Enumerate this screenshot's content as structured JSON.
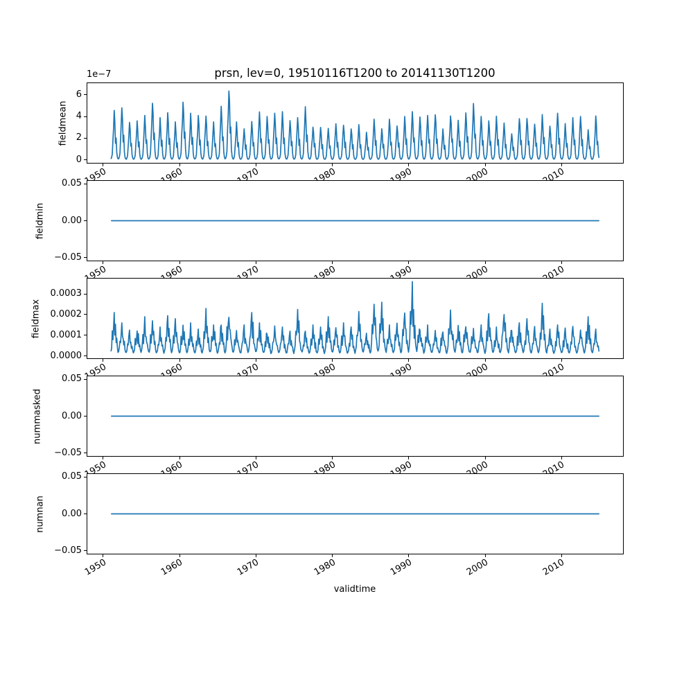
{
  "figure": {
    "title": "prsn, lev=0, 19510116T1200 to 20141130T1200",
    "xlabel": "validtime",
    "background": "#ffffff",
    "line_color": "#1f77b4",
    "frame_color": "#000000",
    "xlim": [
      1947.85,
      2018.11
    ],
    "xticks": [
      {
        "label": "1950",
        "value": 1950
      },
      {
        "label": "1960",
        "value": 1960
      },
      {
        "label": "1970",
        "value": 1970
      },
      {
        "label": "1980",
        "value": 1980
      },
      {
        "label": "1990",
        "value": 1990
      },
      {
        "label": "2000",
        "value": 2000
      },
      {
        "label": "2010",
        "value": 2010
      }
    ]
  },
  "chart_data": [
    {
      "type": "line",
      "ylabel": "fieldmean",
      "offset_text": "1e−7",
      "values_unit": "1e-7",
      "ylim": [
        -0.34,
        7.14
      ],
      "yticks": [
        {
          "label": "0",
          "value": 0
        },
        {
          "label": "2",
          "value": 2
        },
        {
          "label": "4",
          "value": 4
        },
        {
          "label": "6",
          "value": 6
        }
      ],
      "series": {
        "kind": "seasonal",
        "name": "fieldmean",
        "start_year": 1951,
        "end_year_month": "2014-11",
        "annual_peaks": [
          4.6,
          4.85,
          3.5,
          3.6,
          4.1,
          5.6,
          3.9,
          4.35,
          3.5,
          5.75,
          4.3,
          4.1,
          4.05,
          3.5,
          4.95,
          6.8,
          3.5,
          2.9,
          3.55,
          4.5,
          4.1,
          4.4,
          4.45,
          3.85,
          3.9,
          4.9,
          3.2,
          3.0,
          2.9,
          3.4,
          3.4,
          2.9,
          3.25,
          2.55,
          3.75,
          2.95,
          3.75,
          3.35,
          4.0,
          4.45,
          3.95,
          4.1,
          4.25,
          2.85,
          4.35,
          3.65,
          4.4,
          5.4,
          4.1,
          3.6,
          4.05,
          3.4,
          2.4,
          4.05,
          3.85,
          3.4,
          4.25,
          3.2,
          4.3,
          3.35,
          3.9,
          4.0,
          2.8,
          4.05
        ],
        "seasonal_profile": [
          0.02,
          0.05,
          0.12,
          0.4,
          0.65,
          1.0,
          0.75,
          0.35,
          0.45,
          0.15,
          0.05,
          0.02
        ],
        "jitter": 0.16,
        "baseline": 0.0
      }
    },
    {
      "type": "line",
      "ylabel": "fieldmin",
      "values_unit": "1",
      "ylim": [
        -0.055,
        0.055
      ],
      "yticks": [
        {
          "label": "0.05",
          "value": 0.05
        },
        {
          "label": "0.00",
          "value": 0
        },
        {
          "label": "−0.05",
          "value": -0.05
        }
      ],
      "series": {
        "kind": "constant",
        "name": "fieldmin",
        "value": 0,
        "x_start": 1951.04,
        "x_end": 2014.92
      }
    },
    {
      "type": "line",
      "ylabel": "fieldmax",
      "values_unit": "1e-4",
      "ylim": [
        -0.15,
        3.78
      ],
      "yticks": [
        {
          "label": "0.0000",
          "value": 0
        },
        {
          "label": "0.0001",
          "value": 1
        },
        {
          "label": "0.0002",
          "value": 2
        },
        {
          "label": "0.0003",
          "value": 3
        }
      ],
      "series": {
        "kind": "seasonal",
        "name": "fieldmax",
        "start_year": 1951,
        "end_year_month": "2014-11",
        "annual_peaks": [
          2.1,
          1.6,
          1.3,
          1.5,
          1.9,
          1.7,
          1.4,
          1.95,
          1.8,
          1.5,
          1.6,
          1.3,
          2.3,
          1.5,
          1.6,
          2.35,
          1.4,
          1.5,
          2.1,
          1.6,
          1.35,
          1.45,
          1.4,
          1.2,
          2.25,
          1.3,
          1.5,
          1.4,
          1.9,
          1.5,
          1.6,
          1.4,
          2.15,
          1.3,
          2.5,
          2.6,
          1.5,
          2.0,
          2.2,
          3.6,
          1.55,
          1.5,
          1.3,
          1.4,
          2.4,
          1.5,
          1.6,
          1.45,
          1.5,
          2.1,
          1.4,
          2.3,
          1.45,
          1.6,
          1.8,
          1.5,
          2.55,
          1.3,
          1.5,
          1.35,
          1.6,
          1.5,
          1.9,
          1.3
        ],
        "seasonal_profile": [
          0.1,
          0.22,
          0.5,
          0.38,
          0.68,
          1.0,
          0.48,
          0.62,
          0.3,
          0.34,
          0.16,
          0.08
        ],
        "jitter": 0.5,
        "baseline": 0.03
      }
    },
    {
      "type": "line",
      "ylabel": "nummasked",
      "values_unit": "1",
      "ylim": [
        -0.055,
        0.055
      ],
      "yticks": [
        {
          "label": "0.05",
          "value": 0.05
        },
        {
          "label": "0.00",
          "value": 0
        },
        {
          "label": "−0.05",
          "value": -0.05
        }
      ],
      "series": {
        "kind": "constant",
        "name": "nummasked",
        "value": 0,
        "x_start": 1951.04,
        "x_end": 2014.92
      }
    },
    {
      "type": "line",
      "ylabel": "numnan",
      "values_unit": "1",
      "ylim": [
        -0.055,
        0.055
      ],
      "yticks": [
        {
          "label": "0.05",
          "value": 0.05
        },
        {
          "label": "0.00",
          "value": 0
        },
        {
          "label": "−0.05",
          "value": -0.05
        }
      ],
      "series": {
        "kind": "constant",
        "name": "numnan",
        "value": 0,
        "x_start": 1951.04,
        "x_end": 2014.92
      }
    }
  ]
}
